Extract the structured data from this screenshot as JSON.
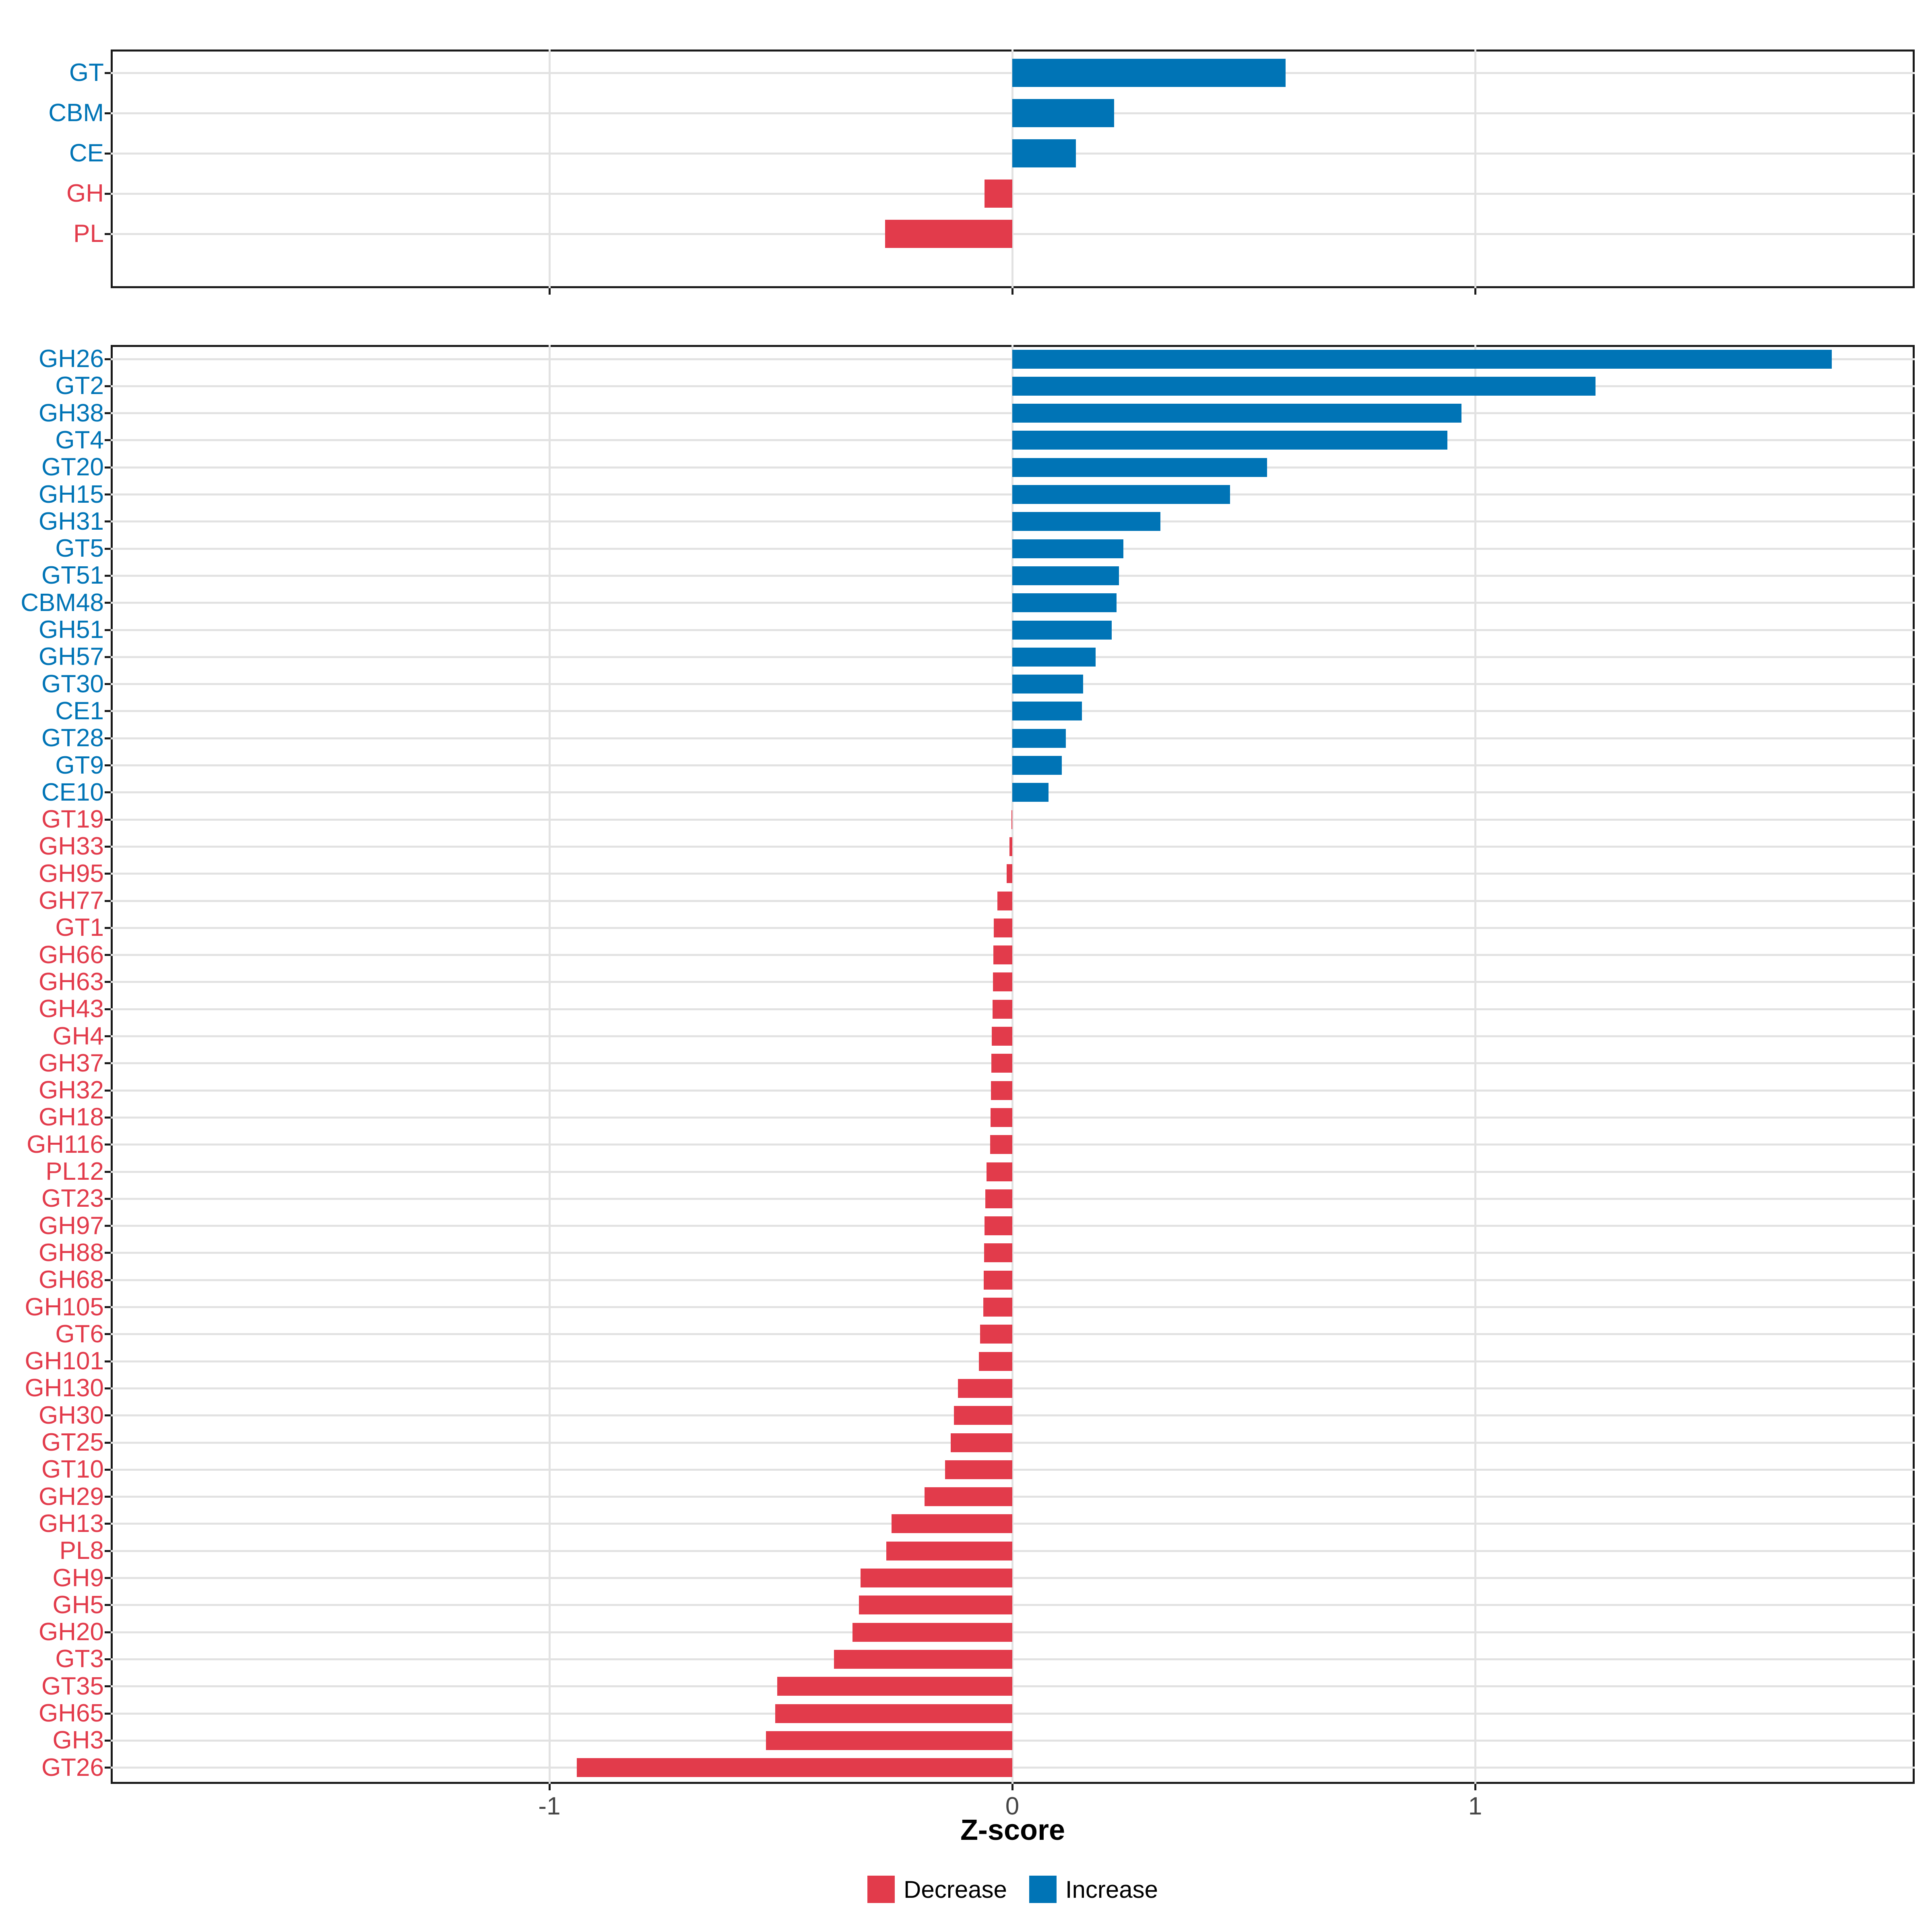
{
  "colors": {
    "increase": "#0074B6",
    "decrease": "#E23B4B",
    "grid": "#E2E2E2",
    "axis_text": "#454545",
    "border": "#1A1A1A",
    "title_text": "#000000"
  },
  "x_axis": {
    "label": "Z-score",
    "tick_labels": [
      "-1",
      "0",
      "1"
    ],
    "tick_values": [
      -1,
      0,
      1
    ],
    "range": [
      -1.95,
      1.95
    ]
  },
  "legend": {
    "position": "bottom",
    "items": [
      {
        "label": "Decrease",
        "direction": "decrease"
      },
      {
        "label": "Increase",
        "direction": "increase"
      }
    ]
  },
  "chart_data": [
    {
      "type": "bar",
      "orientation": "horizontal",
      "panel": "enzyme-classes",
      "xlabel": "Z-score",
      "xlim": [
        -1.95,
        1.95
      ],
      "grid": "major",
      "categories": [
        "GT",
        "CBM",
        "CE",
        "GH",
        "PL"
      ],
      "values": [
        0.59,
        0.22,
        0.137,
        -0.06,
        -0.275
      ]
    },
    {
      "type": "bar",
      "orientation": "horizontal",
      "panel": "enzyme-families",
      "xlabel": "Z-score",
      "xlim": [
        -1.95,
        1.95
      ],
      "grid": "major",
      "categories": [
        "GH26",
        "GT2",
        "GH38",
        "GT4",
        "GT20",
        "GH15",
        "GH31",
        "GT5",
        "GT51",
        "CBM48",
        "GH51",
        "GH57",
        "GT30",
        "CE1",
        "GT28",
        "GT9",
        "CE10",
        "GT19",
        "GH33",
        "GH95",
        "GH77",
        "GT1",
        "GH66",
        "GH63",
        "GH43",
        "GH4",
        "GH37",
        "GH32",
        "GH18",
        "GH116",
        "PL12",
        "GT23",
        "GH97",
        "GH88",
        "GH68",
        "GH105",
        "GT6",
        "GH101",
        "GH130",
        "GH30",
        "GT25",
        "GT10",
        "GH29",
        "GH13",
        "PL8",
        "GH9",
        "GH5",
        "GH20",
        "GT3",
        "GT35",
        "GH65",
        "GH3",
        "GT26"
      ],
      "values": [
        1.77,
        1.26,
        0.97,
        0.94,
        0.55,
        0.47,
        0.32,
        0.24,
        0.23,
        0.225,
        0.215,
        0.18,
        0.153,
        0.15,
        0.116,
        0.107,
        0.078,
        -0.002,
        -0.006,
        -0.012,
        -0.032,
        -0.04,
        -0.041,
        -0.042,
        -0.043,
        -0.044,
        -0.045,
        -0.046,
        -0.047,
        -0.048,
        -0.056,
        -0.058,
        -0.06,
        -0.061,
        -0.062,
        -0.063,
        -0.07,
        -0.072,
        -0.117,
        -0.126,
        -0.133,
        -0.145,
        -0.19,
        -0.261,
        -0.272,
        -0.328,
        -0.331,
        -0.345,
        -0.385,
        -0.508,
        -0.512,
        -0.532,
        -0.941
      ]
    }
  ]
}
